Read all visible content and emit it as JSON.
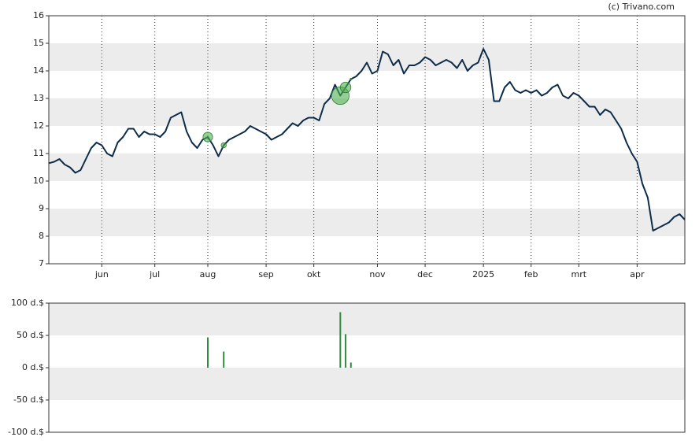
{
  "attribution": "(c) Trivano.com",
  "chart_data": [
    {
      "type": "line",
      "color": "#0d2c4a",
      "marker_color": "#4caf50",
      "categories": [
        null,
        null,
        null,
        null,
        null,
        null,
        null,
        null,
        null,
        null,
        "jun",
        null,
        null,
        null,
        null,
        null,
        null,
        null,
        null,
        null,
        "jul",
        null,
        null,
        null,
        null,
        null,
        null,
        null,
        null,
        null,
        "aug",
        null,
        null,
        null,
        null,
        null,
        null,
        null,
        null,
        null,
        null,
        "sep",
        null,
        null,
        null,
        null,
        null,
        null,
        null,
        null,
        "okt",
        null,
        null,
        null,
        null,
        null,
        null,
        null,
        null,
        null,
        null,
        null,
        "nov",
        null,
        null,
        null,
        null,
        null,
        null,
        null,
        null,
        "dec",
        null,
        null,
        null,
        null,
        null,
        null,
        null,
        null,
        null,
        null,
        "2025",
        null,
        null,
        null,
        null,
        null,
        null,
        null,
        null,
        "feb",
        null,
        null,
        null,
        null,
        null,
        null,
        null,
        null,
        "mrt",
        null,
        null,
        null,
        null,
        null,
        null,
        null,
        null,
        null,
        null,
        "apr",
        null,
        null,
        null,
        null,
        null,
        null,
        null,
        null,
        null
      ],
      "values": [
        10.65,
        10.7,
        10.8,
        10.6,
        10.5,
        10.3,
        10.4,
        10.8,
        11.2,
        11.4,
        11.3,
        11.0,
        10.9,
        11.4,
        11.6,
        11.9,
        11.9,
        11.6,
        11.8,
        11.7,
        11.7,
        11.6,
        11.8,
        12.3,
        12.4,
        12.5,
        11.8,
        11.4,
        11.2,
        11.5,
        11.6,
        11.3,
        10.9,
        11.3,
        11.5,
        11.6,
        11.7,
        11.8,
        12.0,
        11.9,
        11.8,
        11.7,
        11.5,
        11.6,
        11.7,
        11.9,
        12.1,
        12.0,
        12.2,
        12.3,
        12.3,
        12.2,
        12.8,
        13.0,
        13.5,
        13.1,
        13.4,
        13.7,
        13.8,
        14.0,
        14.3,
        13.9,
        14.0,
        14.7,
        14.6,
        14.2,
        14.4,
        13.9,
        14.2,
        14.2,
        14.3,
        14.5,
        14.4,
        14.2,
        14.3,
        14.4,
        14.3,
        14.1,
        14.4,
        14.0,
        14.2,
        14.3,
        14.8,
        14.4,
        12.9,
        12.9,
        13.4,
        13.6,
        13.3,
        13.2,
        13.3,
        13.2,
        13.3,
        13.1,
        13.2,
        13.4,
        13.5,
        13.1,
        13.0,
        13.2,
        13.1,
        12.9,
        12.7,
        12.7,
        12.4,
        12.6,
        12.5,
        12.2,
        11.9,
        11.4,
        11.0,
        10.7,
        9.9,
        9.4,
        8.2,
        8.3,
        8.4,
        8.5,
        8.7,
        8.8,
        8.6
      ],
      "ylim": [
        7,
        16
      ],
      "yticks": [
        7,
        8,
        9,
        10,
        11,
        12,
        13,
        14,
        15,
        16
      ]
    },
    {
      "type": "bar",
      "color": "#2e8b3e",
      "values": [
        null,
        null,
        null,
        null,
        null,
        null,
        null,
        null,
        null,
        null,
        null,
        null,
        null,
        null,
        null,
        null,
        null,
        null,
        null,
        null,
        null,
        null,
        null,
        null,
        null,
        null,
        null,
        null,
        null,
        null,
        47,
        null,
        null,
        25,
        null,
        null,
        null,
        null,
        null,
        null,
        null,
        null,
        null,
        null,
        null,
        null,
        null,
        null,
        null,
        null,
        null,
        null,
        null,
        null,
        null,
        86,
        52,
        8,
        null,
        null,
        null,
        null,
        null,
        null,
        null,
        null,
        null,
        null,
        null,
        null,
        null,
        null,
        null,
        null,
        null,
        null,
        null,
        null,
        null,
        null,
        null,
        null,
        null,
        null,
        null,
        null,
        null,
        null,
        null,
        null,
        null,
        null,
        null,
        null,
        null,
        null,
        null,
        null,
        null,
        null,
        null,
        null,
        null,
        null,
        null,
        null,
        null,
        null,
        null,
        null,
        null,
        null,
        null,
        null,
        null,
        null,
        null,
        null,
        null,
        null,
        null
      ],
      "ylim": [
        -100,
        100
      ],
      "yticks": [
        {
          "value": -100,
          "label": "-100 d.$"
        },
        {
          "value": -50,
          "label": "-50 d.$"
        },
        {
          "value": 0,
          "label": "0 d.$"
        },
        {
          "value": 50,
          "label": "50 d.$"
        },
        {
          "value": 100,
          "label": "100 d.$"
        }
      ]
    }
  ]
}
